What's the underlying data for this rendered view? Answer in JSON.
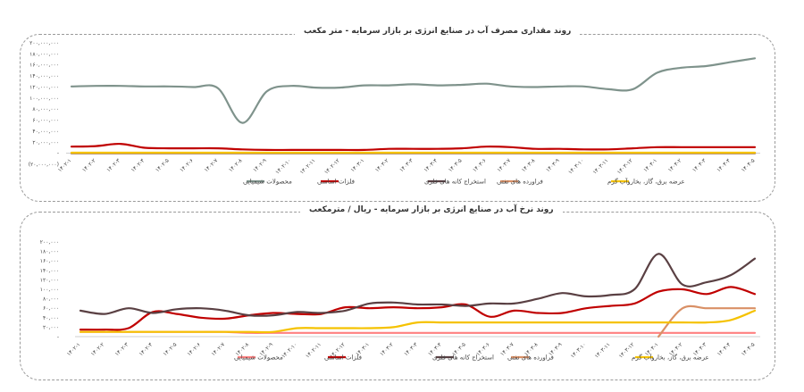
{
  "charts_meta": [
    {
      "title": "روند مقداری مصرف آب در صنایع انرژی بر بازار سرمایه - متر مکعب"
    },
    {
      "title": "روند نرخ آب در صنایع انرژی بر بازار سرمایه - ریال / مترمکعب"
    }
  ],
  "chart_data": [
    {
      "type": "line",
      "title": "روند مقداری مصرف آب در صنایع انرژی بر بازار سرمایه - متر مکعب",
      "ylim": [
        -20000000,
        200000000
      ],
      "yticks": [
        "۲۰۰,۰۰۰,۰۰۰",
        "۱۸۰,۰۰۰,۰۰۰",
        "۱۶۰,۰۰۰,۰۰۰",
        "۱۴۰,۰۰۰,۰۰۰",
        "۱۲۰,۰۰۰,۰۰۰",
        "۱۰۰,۰۰۰,۰۰۰",
        "۸۰,۰۰۰,۰۰۰",
        "۶۰,۰۰۰,۰۰۰",
        "۴۰,۰۰۰,۰۰۰",
        "۲۰,۰۰۰,۰۰۰",
        "-",
        "(۲۰,۰۰۰,۰۰۰)"
      ],
      "ytick_values": [
        200000000,
        180000000,
        160000000,
        140000000,
        120000000,
        100000000,
        80000000,
        60000000,
        40000000,
        20000000,
        0,
        -20000000
      ],
      "categories": [
        "۱۴۰۲-۱",
        "۱۴۰۲-۲",
        "۱۴۰۲-۳",
        "۱۴۰۲-۴",
        "۱۴۰۲-۵",
        "۱۴۰۲-۶",
        "۱۴۰۲-۷",
        "۱۴۰۲-۸",
        "۱۴۰۲-۹",
        "۱۴۰۲-۱۰",
        "۱۴۰۲-۱۱",
        "۱۴۰۲-۱۲",
        "۱۴۰۳-۱",
        "۱۴۰۳-۲",
        "۱۴۰۳-۳",
        "۱۴۰۳-۴",
        "۱۴۰۳-۵",
        "۱۴۰۳-۶",
        "۱۴۰۳-۷",
        "۱۴۰۳-۸",
        "۱۴۰۳-۹",
        "۱۴۰۳-۱۰",
        "۱۴۰۳-۱۱",
        "۱۴۰۳-۱۲",
        "۱۴۰۴-۱",
        "۱۴۰۴-۲",
        "۱۴۰۴-۳",
        "۱۴۰۴-۴",
        "۱۴۰۴-۵"
      ],
      "series": [
        {
          "name": "محصولات شیمیایی",
          "color": "#7f938c",
          "values": [
            121,
            122,
            122,
            121,
            121,
            120,
            118,
            55,
            112,
            122,
            119,
            119,
            123,
            123,
            125,
            123,
            124,
            126,
            121,
            120,
            121,
            121,
            116,
            116,
            146,
            155,
            158,
            165,
            172
          ]
        },
        {
          "name": "فلزات اساسی",
          "color": "#c00000",
          "values": [
            12,
            13,
            17,
            10,
            9,
            9,
            9,
            7,
            6,
            6,
            6,
            6,
            6,
            8,
            8,
            8,
            9,
            12,
            11,
            8,
            8,
            7,
            7,
            9,
            11,
            11,
            11,
            11,
            11
          ]
        },
        {
          "name": "استخراج کانه های فلزی",
          "color": "#5a4043",
          "values": [
            0,
            0,
            0,
            0,
            0,
            0,
            0,
            0,
            0,
            0,
            0,
            0,
            0,
            0,
            0,
            0,
            0,
            0,
            0,
            0,
            0,
            0,
            0,
            0,
            0,
            0,
            0,
            0,
            0
          ]
        },
        {
          "name": "فراورده های نفتی",
          "color": "#d99066",
          "values": [
            0.5,
            0.5,
            0.5,
            0.5,
            0.5,
            0.5,
            0.5,
            0.5,
            0.5,
            0.5,
            0.5,
            0.5,
            0.5,
            0.5,
            0.5,
            0.5,
            0.5,
            0.5,
            0.5,
            0.5,
            0.5,
            0.5,
            0.5,
            0.5,
            0.5,
            0.5,
            0.5,
            0.5,
            0.5
          ]
        },
        {
          "name": "عرضه برق، گاز، بخاروآب گرم",
          "color": "#f5c200",
          "values": [
            1,
            1,
            1,
            1,
            1,
            1,
            1,
            1,
            1,
            1,
            1,
            1,
            1,
            1,
            1,
            1,
            1,
            1,
            1,
            1,
            1,
            1,
            1,
            1,
            1,
            1,
            1,
            1,
            1
          ]
        }
      ],
      "value_scale": 1000000
    },
    {
      "type": "line",
      "title": "روند نرخ آب در صنایع انرژی بر بازار سرمایه - ریال / مترمکعب",
      "ylim": [
        0,
        200000
      ],
      "yticks": [
        "۲۰۰,۰۰۰",
        "۱۸۰,۰۰۰",
        "۱۶۰,۰۰۰",
        "۱۴۰,۰۰۰",
        "۱۲۰,۰۰۰",
        "۱۰۰,۰۰۰",
        "۸۰,۰۰۰",
        "۶۰,۰۰۰",
        "۴۰,۰۰۰",
        "۲۰,۰۰۰",
        "-"
      ],
      "ytick_values": [
        200000,
        180000,
        160000,
        140000,
        120000,
        100000,
        80000,
        60000,
        40000,
        20000,
        0
      ],
      "categories": [
        "۱۴۰۲-۱",
        "۱۴۰۲-۲",
        "۱۴۰۲-۳",
        "۱۴۰۲-۴",
        "۱۴۰۲-۵",
        "۱۴۰۲-۶",
        "۱۴۰۲-۷",
        "۱۴۰۲-۸",
        "۱۴۰۲-۹",
        "۱۴۰۲-۱۰",
        "۱۴۰۲-۱۱",
        "۱۴۰۲-۱۲",
        "۱۴۰۳-۱",
        "۱۴۰۳-۲",
        "۱۴۰۳-۳",
        "۱۴۰۳-۴",
        "۱۴۰۳-۵",
        "۱۴۰۳-۶",
        "۱۴۰۳-۷",
        "۱۴۰۳-۸",
        "۱۴۰۳-۹",
        "۱۴۰۳-۱۰",
        "۱۴۰۳-۱۱",
        "۱۴۰۳-۱۲",
        "۱۴۰۴-۱",
        "۱۴۰۴-۲",
        "۱۴۰۴-۳",
        "۱۴۰۴-۴",
        "۱۴۰۴-۵"
      ],
      "series": [
        {
          "name": "محصولات شیمیایی",
          "color": "#ff8080",
          "values": [
            10,
            10,
            10,
            10,
            10,
            10,
            10,
            8,
            8,
            8,
            8,
            8,
            8,
            8,
            8,
            8,
            8,
            8,
            8,
            8,
            8,
            8,
            8,
            8,
            8,
            8,
            8,
            8,
            8
          ]
        },
        {
          "name": "فلزات اساسی",
          "color": "#c00000",
          "values": [
            15,
            15,
            18,
            52,
            48,
            40,
            38,
            45,
            50,
            48,
            48,
            62,
            60,
            62,
            60,
            62,
            68,
            42,
            55,
            50,
            50,
            60,
            65,
            70,
            95,
            100,
            90,
            105,
            90
          ]
        },
        {
          "name": "استخراج کانه های فلزی",
          "color": "#5a4043",
          "values": [
            55,
            48,
            60,
            50,
            58,
            60,
            55,
            45,
            45,
            52,
            50,
            55,
            70,
            72,
            68,
            68,
            65,
            70,
            70,
            80,
            92,
            85,
            88,
            100,
            175,
            110,
            115,
            130,
            165
          ]
        },
        {
          "name": "فراورده های نفتی",
          "color": "#d99066",
          "values": [
            null,
            null,
            null,
            null,
            null,
            null,
            null,
            null,
            null,
            null,
            null,
            null,
            null,
            null,
            null,
            null,
            null,
            null,
            null,
            null,
            null,
            null,
            null,
            null,
            0,
            60,
            60,
            60,
            60
          ]
        },
        {
          "name": "عرضه برق، گاز، بخاروآب گرم",
          "color": "#f5c200",
          "values": [
            10,
            10,
            10,
            10,
            10,
            10,
            10,
            10,
            10,
            18,
            18,
            18,
            18,
            20,
            30,
            30,
            30,
            30,
            30,
            30,
            30,
            30,
            30,
            30,
            30,
            30,
            30,
            35,
            55
          ]
        }
      ],
      "value_scale": 1000
    }
  ]
}
